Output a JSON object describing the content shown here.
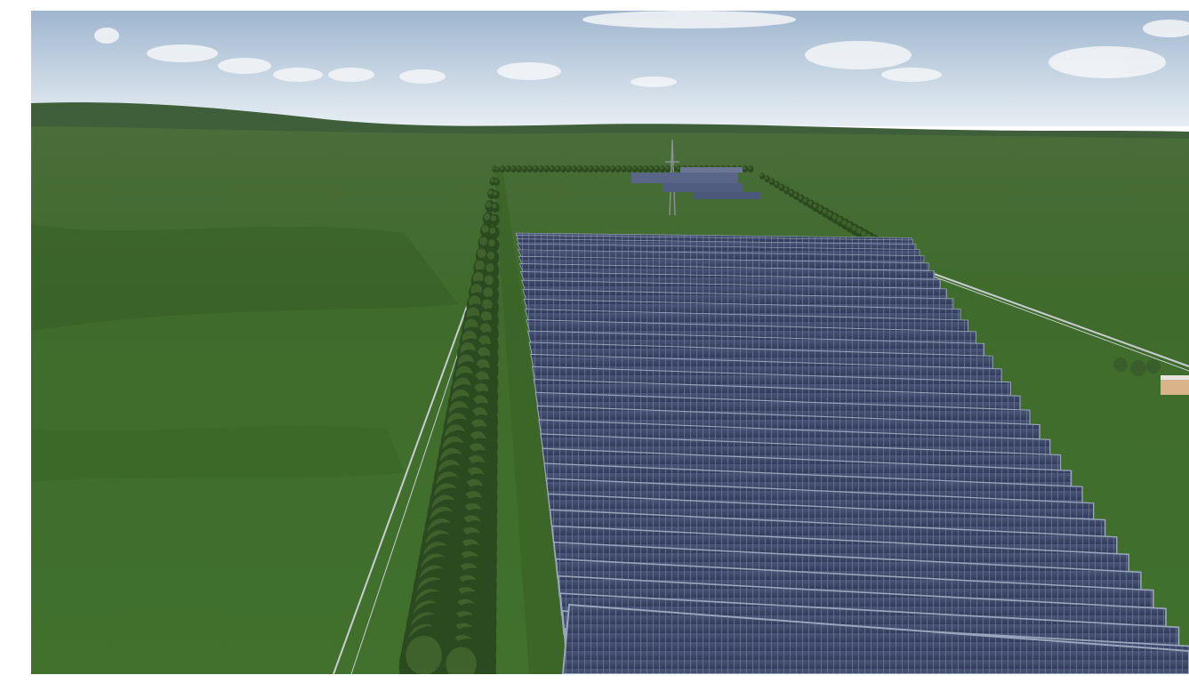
{
  "scene": {
    "colors": {
      "sky_top": "#9fb6cf",
      "sky_horizon": "#e7eef3",
      "hill": "#3e5f3a",
      "field": "#3f6b2c",
      "field_dark": "#34591f",
      "tree": "#2b4a1f",
      "tree_highlight": "#4d7236",
      "panel": "#3b4768",
      "panel_edge": "#9aa6bd",
      "fence": "#c9cdd2",
      "cloud": "#f4f6f8"
    }
  }
}
